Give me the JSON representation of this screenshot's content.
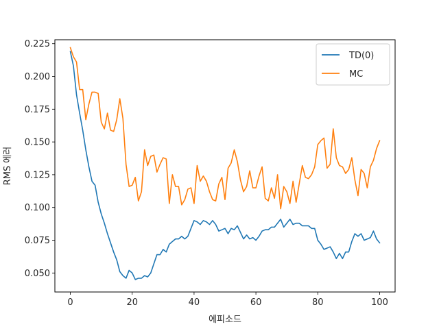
{
  "chart_data": {
    "type": "line",
    "title": "",
    "xlabel": "에피소드",
    "ylabel": "RMS 에러",
    "xlim": [
      -5,
      105
    ],
    "ylim": [
      0.0355,
      0.228
    ],
    "xticks": [
      0,
      20,
      40,
      60,
      80,
      100
    ],
    "yticks": [
      0.05,
      0.075,
      0.1,
      0.125,
      0.15,
      0.175,
      0.2,
      0.225
    ],
    "ytick_labels": [
      "0.050",
      "0.075",
      "0.100",
      "0.125",
      "0.150",
      "0.175",
      "0.200",
      "0.225"
    ],
    "grid": false,
    "legend_position": "top-right",
    "x": [
      0,
      1,
      2,
      3,
      4,
      5,
      6,
      7,
      8,
      9,
      10,
      11,
      12,
      13,
      14,
      15,
      16,
      17,
      18,
      19,
      20,
      21,
      22,
      23,
      24,
      25,
      26,
      27,
      28,
      29,
      30,
      31,
      32,
      33,
      34,
      35,
      36,
      37,
      38,
      39,
      40,
      41,
      42,
      43,
      44,
      45,
      46,
      47,
      48,
      49,
      50,
      51,
      52,
      53,
      54,
      55,
      56,
      57,
      58,
      59,
      60,
      61,
      62,
      63,
      64,
      65,
      66,
      67,
      68,
      69,
      70,
      71,
      72,
      73,
      74,
      75,
      76,
      77,
      78,
      79,
      80,
      81,
      82,
      83,
      84,
      85,
      86,
      87,
      88,
      89,
      90,
      91,
      92,
      93,
      94,
      95,
      96,
      97,
      98,
      99,
      100
    ],
    "series": [
      {
        "name": "TD(0)",
        "color": "#1f77b4",
        "values": [
          0.219,
          0.208,
          0.186,
          0.172,
          0.159,
          0.144,
          0.131,
          0.12,
          0.117,
          0.104,
          0.095,
          0.088,
          0.08,
          0.073,
          0.066,
          0.06,
          0.051,
          0.048,
          0.046,
          0.052,
          0.05,
          0.045,
          0.046,
          0.046,
          0.048,
          0.047,
          0.05,
          0.057,
          0.064,
          0.064,
          0.068,
          0.066,
          0.072,
          0.074,
          0.076,
          0.076,
          0.078,
          0.076,
          0.078,
          0.084,
          0.09,
          0.089,
          0.087,
          0.09,
          0.089,
          0.087,
          0.09,
          0.087,
          0.082,
          0.083,
          0.084,
          0.08,
          0.084,
          0.083,
          0.086,
          0.081,
          0.076,
          0.079,
          0.076,
          0.077,
          0.075,
          0.078,
          0.082,
          0.083,
          0.083,
          0.085,
          0.085,
          0.088,
          0.091,
          0.085,
          0.088,
          0.091,
          0.087,
          0.088,
          0.088,
          0.086,
          0.086,
          0.086,
          0.084,
          0.084,
          0.075,
          0.072,
          0.068,
          0.069,
          0.07,
          0.066,
          0.061,
          0.065,
          0.061,
          0.066,
          0.066,
          0.074,
          0.08,
          0.078,
          0.08,
          0.075,
          0.076,
          0.077,
          0.082,
          0.076,
          0.073
        ]
      },
      {
        "name": "MC",
        "color": "#ff7f0e",
        "values": [
          0.222,
          0.215,
          0.211,
          0.19,
          0.19,
          0.167,
          0.179,
          0.188,
          0.188,
          0.187,
          0.165,
          0.16,
          0.172,
          0.159,
          0.158,
          0.167,
          0.183,
          0.168,
          0.133,
          0.116,
          0.117,
          0.123,
          0.105,
          0.112,
          0.144,
          0.132,
          0.139,
          0.14,
          0.127,
          0.133,
          0.138,
          0.137,
          0.103,
          0.125,
          0.116,
          0.116,
          0.102,
          0.106,
          0.114,
          0.115,
          0.103,
          0.132,
          0.12,
          0.124,
          0.12,
          0.112,
          0.106,
          0.105,
          0.118,
          0.123,
          0.106,
          0.13,
          0.134,
          0.144,
          0.135,
          0.121,
          0.112,
          0.116,
          0.128,
          0.115,
          0.115,
          0.124,
          0.131,
          0.107,
          0.105,
          0.115,
          0.107,
          0.125,
          0.099,
          0.116,
          0.112,
          0.103,
          0.12,
          0.104,
          0.118,
          0.132,
          0.123,
          0.122,
          0.125,
          0.131,
          0.148,
          0.151,
          0.153,
          0.13,
          0.133,
          0.16,
          0.138,
          0.132,
          0.131,
          0.126,
          0.129,
          0.138,
          0.121,
          0.109,
          0.129,
          0.126,
          0.115,
          0.131,
          0.136,
          0.145,
          0.151
        ]
      }
    ]
  }
}
